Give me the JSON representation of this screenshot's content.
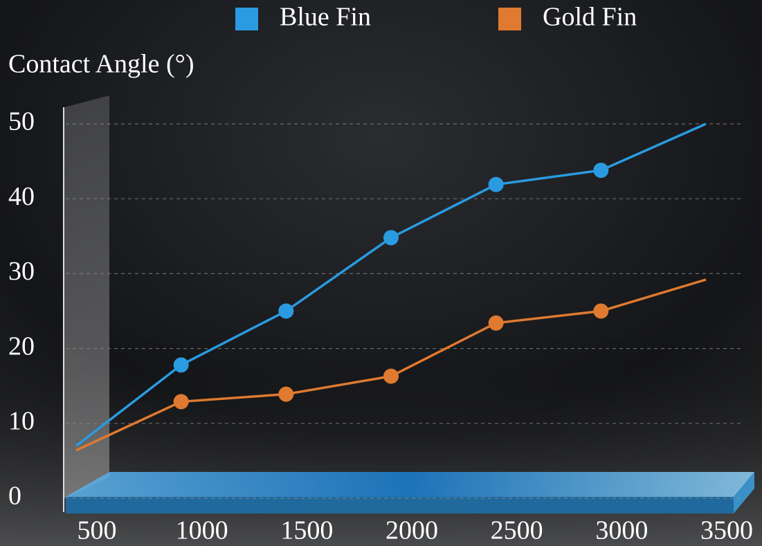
{
  "chart_data": {
    "type": "line",
    "y_label": "Contact Angle (°)",
    "x": [
      500,
      1000,
      1500,
      2000,
      2500,
      3000,
      3500
    ],
    "series": [
      {
        "name": "Blue Fin",
        "color": "#2a9be0",
        "values": [
          7,
          17.8,
          25,
          34.8,
          41.9,
          43.8,
          50
        ]
      },
      {
        "name": "Gold Fin",
        "color": "#df7a30",
        "values": [
          6.4,
          12.9,
          13.9,
          16.3,
          23.4,
          25,
          29.2
        ]
      }
    ],
    "xlim": [
      500,
      3500
    ],
    "xticks": [
      500,
      1000,
      1500,
      2000,
      2500,
      3000,
      3500
    ],
    "ylim": [
      0,
      50
    ],
    "yticks": [
      0,
      10,
      20,
      30,
      40,
      50
    ],
    "grid": true,
    "legend": "top"
  }
}
